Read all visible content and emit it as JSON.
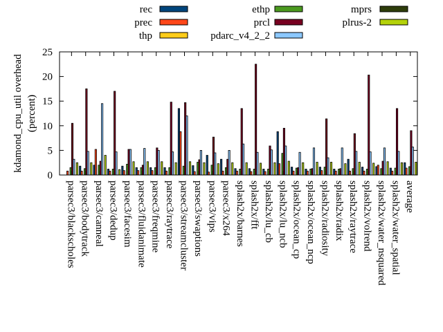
{
  "chart_data": {
    "type": "bar",
    "title": "",
    "xlabel": "",
    "ylabel": "kdamond_cpu_util overhead",
    "ylabel_line2": "(percent)",
    "ylim": [
      0,
      25
    ],
    "yticks": [
      "0",
      "5",
      "10",
      "15",
      "20",
      "25"
    ],
    "ytick_values": [
      0,
      5,
      10,
      15,
      20,
      25
    ],
    "grid": false,
    "legend_placement": "top",
    "categories": [
      "parsec3/blackscholes",
      "parsec3/bodytrack",
      "parsec3/canneal",
      "parsec3/dedup",
      "parsec3/facesim",
      "parsec3/fluidanimate",
      "parsec3/freqmine",
      "parsec3/raytrace",
      "parsec3/streamcluster",
      "parsec3/swaptions",
      "parsec3/vips",
      "parsec3/x264",
      "splash2x/barnes",
      "splash2x/fft",
      "splash2x/lu_cb",
      "splash2x/lu_ncb",
      "splash2x/ocean_cp",
      "splash2x/ocean_ncp",
      "splash2x/radiosity",
      "splash2x/radix",
      "splash2x/raytrace",
      "splash2x/volrend",
      "splash2x/water_nsquared",
      "splash2x/water_spatial",
      "average"
    ],
    "series": [
      {
        "name": "rec",
        "color": "#00457c",
        "values": [
          0.0,
          1.8,
          2.0,
          1.2,
          1.8,
          1.5,
          1.5,
          1.5,
          13.5,
          1.9,
          4.0,
          3.2,
          1.3,
          1.3,
          1.2,
          8.8,
          1.6,
          1.2,
          1.6,
          1.2,
          3.2,
          1.6,
          1.7,
          1.4,
          2.5
        ]
      },
      {
        "name": "prec",
        "color": "#ff4719",
        "values": [
          0.8,
          0.8,
          5.2,
          0.8,
          0.9,
          0.9,
          0.9,
          0.8,
          8.8,
          0.7,
          0.6,
          0.8,
          0.8,
          0.7,
          0.7,
          2.3,
          0.8,
          0.8,
          0.9,
          0.8,
          0.8,
          0.8,
          2.0,
          0.8,
          1.4
        ]
      },
      {
        "name": "thp",
        "color": "#ffcc19",
        "values": [
          0,
          0,
          0,
          0,
          0,
          0,
          0,
          0,
          0,
          0,
          0,
          0,
          0,
          0,
          0,
          0,
          0,
          0,
          0,
          0,
          0,
          0,
          0,
          0,
          0
        ]
      },
      {
        "name": "ethp",
        "color": "#4b9a1f",
        "values": [
          1.5,
          1.3,
          2.0,
          1.2,
          2.2,
          1.5,
          1.5,
          1.5,
          1.8,
          2.6,
          2.0,
          1.5,
          1.2,
          1.2,
          1.2,
          4.4,
          1.4,
          1.2,
          1.6,
          1.2,
          1.3,
          1.2,
          1.3,
          1.4,
          1.7
        ]
      },
      {
        "name": "prcl",
        "color": "#780021",
        "values": [
          10.5,
          17.5,
          2.8,
          17.0,
          5.2,
          2.0,
          5.5,
          14.8,
          14.7,
          3.1,
          7.7,
          3.2,
          13.5,
          22.5,
          5.9,
          9.5,
          1.5,
          1.3,
          11.4,
          1.3,
          8.4,
          20.3,
          2.8,
          13.5,
          9.0
        ]
      },
      {
        "name": "pdarc_v4_2_2",
        "color": "#8cc8ff",
        "values": [
          3.2,
          4.8,
          14.5,
          4.7,
          5.2,
          5.4,
          5.0,
          4.7,
          12.0,
          5.0,
          4.5,
          5.0,
          6.3,
          4.6,
          5.1,
          5.9,
          4.6,
          5.5,
          3.5,
          5.5,
          4.8,
          4.7,
          5.5,
          4.8,
          5.7
        ]
      },
      {
        "name": "mprs",
        "color": "#2e3d0b",
        "values": [
          0,
          0,
          0,
          0,
          0,
          0,
          0,
          0,
          0,
          0,
          0,
          0,
          0,
          0,
          0,
          0,
          0,
          0,
          0,
          0,
          0,
          0,
          0,
          0,
          0
        ]
      },
      {
        "name": "plrus-2",
        "color": "#b4d20a",
        "values": [
          2.5,
          2.5,
          4.0,
          1.1,
          2.7,
          2.7,
          2.7,
          2.5,
          2.7,
          2.5,
          2.3,
          2.5,
          2.5,
          2.4,
          2.5,
          2.8,
          2.5,
          2.6,
          2.6,
          2.3,
          2.6,
          2.4,
          2.7,
          2.5,
          2.6
        ]
      }
    ]
  }
}
